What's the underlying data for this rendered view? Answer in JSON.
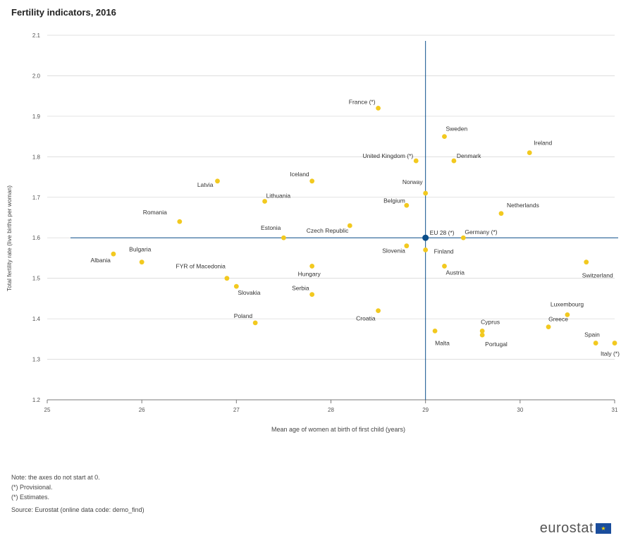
{
  "chart_data": {
    "type": "scatter",
    "title": "Fertility indicators, 2016",
    "xlabel": "Mean age of women at birth of first child (years)",
    "ylabel": "Total fertility rate (live births per woman)",
    "xlim": [
      25,
      31
    ],
    "ylim": [
      1.2,
      2.1
    ],
    "x_ticks": [
      "25",
      "26",
      "27",
      "28",
      "29",
      "30",
      "31"
    ],
    "y_ticks": [
      "1.2",
      "1.3",
      "1.4",
      "1.5",
      "1.6",
      "1.7",
      "1.8",
      "1.9",
      "2.0",
      "2.1"
    ],
    "grid": "horizontal",
    "reference": {
      "label": "EU 28 (*)",
      "x": 29.0,
      "y": 1.6
    },
    "points": [
      {
        "label": "France (*)",
        "x": 28.5,
        "y": 1.92
      },
      {
        "label": "Sweden",
        "x": 29.2,
        "y": 1.85
      },
      {
        "label": "Ireland",
        "x": 30.1,
        "y": 1.81
      },
      {
        "label": "United Kingdom (*)",
        "x": 28.9,
        "y": 1.79
      },
      {
        "label": "Denmark",
        "x": 29.3,
        "y": 1.79
      },
      {
        "label": "Latvia",
        "x": 26.8,
        "y": 1.74
      },
      {
        "label": "Iceland",
        "x": 27.8,
        "y": 1.74
      },
      {
        "label": "Norway",
        "x": 29.0,
        "y": 1.71
      },
      {
        "label": "Lithuania",
        "x": 27.3,
        "y": 1.69
      },
      {
        "label": "Belgium",
        "x": 28.8,
        "y": 1.68
      },
      {
        "label": "Netherlands",
        "x": 29.8,
        "y": 1.66
      },
      {
        "label": "Romania",
        "x": 26.4,
        "y": 1.64
      },
      {
        "label": "Czech Republic",
        "x": 28.2,
        "y": 1.63
      },
      {
        "label": "Estonia",
        "x": 27.5,
        "y": 1.6
      },
      {
        "label": "Germany (*)",
        "x": 29.4,
        "y": 1.6
      },
      {
        "label": "Slovenia",
        "x": 28.8,
        "y": 1.58
      },
      {
        "label": "Finland",
        "x": 29.0,
        "y": 1.57
      },
      {
        "label": "Albania",
        "x": 25.7,
        "y": 1.56
      },
      {
        "label": "Bulgaria",
        "x": 26.0,
        "y": 1.54
      },
      {
        "label": "Switzerland",
        "x": 30.7,
        "y": 1.54
      },
      {
        "label": "Hungary",
        "x": 27.8,
        "y": 1.53
      },
      {
        "label": "Austria",
        "x": 29.2,
        "y": 1.53
      },
      {
        "label": "FYR of Macedonia",
        "x": 26.9,
        "y": 1.5
      },
      {
        "label": "Slovakia",
        "x": 27.0,
        "y": 1.48
      },
      {
        "label": "Serbia",
        "x": 27.8,
        "y": 1.46
      },
      {
        "label": "Croatia",
        "x": 28.5,
        "y": 1.42
      },
      {
        "label": "Luxembourg",
        "x": 30.5,
        "y": 1.41
      },
      {
        "label": "Poland",
        "x": 27.2,
        "y": 1.39
      },
      {
        "label": "Greece",
        "x": 30.3,
        "y": 1.38
      },
      {
        "label": "Cyprus",
        "x": 29.6,
        "y": 1.37
      },
      {
        "label": "Malta",
        "x": 29.1,
        "y": 1.37
      },
      {
        "label": "Portugal",
        "x": 29.6,
        "y": 1.36
      },
      {
        "label": "Spain",
        "x": 30.8,
        "y": 1.34
      },
      {
        "label": "Italy (*)",
        "x": 31.0,
        "y": 1.34
      }
    ],
    "colors": {
      "point": "#f2c91f",
      "reference": "#0b4e8a",
      "grid": "#d9d9d9",
      "axis": "#7a7a7a"
    }
  },
  "notes": {
    "note1": "Note: the axes do not start at 0.",
    "note2": "(*) Provisional.",
    "note3": "(*) Estimates.",
    "source": "Source: Eurostat (online data code: demo_find)"
  },
  "logo": {
    "text": "eurostat"
  }
}
